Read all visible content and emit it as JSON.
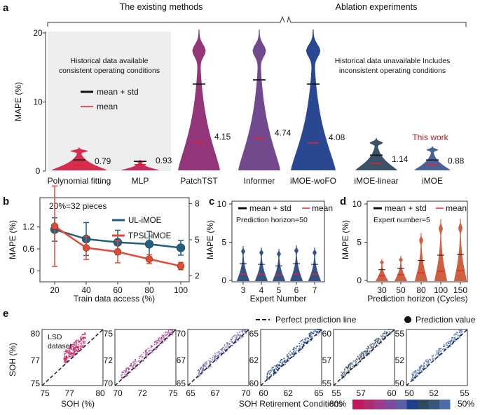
{
  "panel_letters": {
    "a": "a",
    "b": "b",
    "c": "c",
    "d": "d",
    "e": "e"
  },
  "colors": {
    "ul_imoe": "#1f5f82",
    "tpsl_imoe": "#e24a33",
    "poly": "#d62246",
    "mlp": "#c21e56",
    "patchtst": "#8c2a72",
    "informer": "#6b3f88",
    "woFO": "#1f3d8c",
    "linear": "#2f4a60",
    "imoe": "#3f5b94",
    "mean_line": "#e52222",
    "meanstd_line": "#111111",
    "scatter_gradient": [
      "#c2185b",
      "#9c3b87",
      "#6f5ba6",
      "#123f8c",
      "#2e4a5c",
      "#4c6ca8"
    ],
    "panel_d_violin": "#c8502a",
    "panel_c_violin": "#1f3f7a",
    "title_red": "#c0181e"
  },
  "chart_data": [
    {
      "id": "a",
      "type": "violin",
      "group_labels": [
        "The existing methods",
        "Ablation experiments"
      ],
      "ylabel": "MAPE (%)",
      "ylim": [
        0,
        20
      ],
      "yticks": [
        0,
        10,
        20
      ],
      "categories": [
        "Polynomial fitting",
        "MLP",
        "PatchTST",
        "Informer",
        "iMOE-woFO",
        "iMOE-linear",
        "iMOE"
      ],
      "means": [
        0.79,
        0.93,
        4.15,
        4.74,
        4.08,
        1.14,
        0.88
      ],
      "mean_plus_std": [
        1.6,
        1.4,
        12.6,
        13.2,
        12.6,
        2.3,
        1.6
      ],
      "max": [
        3.4,
        1.6,
        20.6,
        20.6,
        20.6,
        4.8,
        3.6
      ],
      "mean_labels": [
        "0.79",
        "0.93",
        "4.15",
        "4.74",
        "4.08",
        "1.14",
        "0.88"
      ],
      "legend": {
        "meanstd": "mean + std",
        "mean": "mean"
      },
      "left_note": "Historical data available consistent operating conditions",
      "right_note": "Historical data unavailable Includes inconsistent operating conditions",
      "highlight_label": "This work"
    },
    {
      "id": "b",
      "type": "line",
      "title": "20%=32 pieces",
      "xlabel": "Train data access (%)",
      "ylabel": "MAPE (%)",
      "x": [
        20,
        40,
        60,
        80,
        100
      ],
      "ylim_left": [
        -0.3,
        2.0
      ],
      "yticks_left": [
        0,
        0.6,
        1.2
      ],
      "ylim_right": [
        1.5,
        8.5
      ],
      "yticks_right": [
        2,
        5,
        8
      ],
      "series": [
        {
          "name": "UL-iMOE",
          "axis": "left",
          "values": [
            1.13,
            0.87,
            0.78,
            0.73,
            0.63
          ],
          "err": [
            0.32,
            0.45,
            0.33,
            0.35,
            0.2
          ]
        },
        {
          "name": "TPSL-iMOE",
          "axis": "left",
          "values": [
            1.22,
            0.63,
            0.52,
            0.32,
            0.13
          ],
          "err": [
            1.1,
            0.32,
            0.3,
            0.12,
            0.1
          ]
        }
      ]
    },
    {
      "id": "c",
      "type": "violin",
      "xlabel": "Expert Number",
      "ylabel": "MAPE (%)",
      "ylim": [
        0,
        10
      ],
      "yticks": [
        0,
        5,
        10
      ],
      "categories": [
        "3",
        "4",
        "5",
        "6",
        "7"
      ],
      "means": [
        0.82,
        0.8,
        0.7,
        0.82,
        0.8
      ],
      "mean_plus_std": [
        2.2,
        2.1,
        1.9,
        2.2,
        2.1
      ],
      "max": [
        4.5,
        4.3,
        4.1,
        4.6,
        4.3
      ],
      "note": "Prediction horizon=50",
      "legend": {
        "meanstd": "mean + std",
        "mean": "mean"
      }
    },
    {
      "id": "d",
      "type": "violin",
      "xlabel": "Prediction horizon (Cycles)",
      "ylabel": "MAPE (%)",
      "ylim": [
        0,
        10
      ],
      "yticks": [
        0,
        5,
        10
      ],
      "categories": [
        "30",
        "50",
        "80",
        "100",
        "150"
      ],
      "means": [
        0.6,
        0.75,
        1.0,
        1.2,
        1.3
      ],
      "mean_plus_std": [
        1.4,
        1.6,
        2.6,
        3.3,
        3.4
      ],
      "max": [
        2.8,
        3.2,
        6.2,
        8.0,
        8.1
      ],
      "note": "Expert number=5",
      "legend": {
        "meanstd": "mean + std",
        "mean": "mean"
      }
    },
    {
      "id": "e",
      "type": "scatter",
      "xlabel": "SOH (%)",
      "ylabel": "SOH (%)",
      "dataset_label": "LSD dataset",
      "legend": {
        "line": "Perfect prediction line",
        "point": "Prediction value"
      },
      "colorbar_label": "SOH Retirement Conditions",
      "colorbar_min": "80%",
      "colorbar_max": "50%",
      "subplots": [
        {
          "xlim": [
            75,
            80
          ],
          "ylim": [
            75,
            80
          ],
          "xticks": [
            "75",
            "77",
            "80"
          ],
          "yticks": [
            "75",
            "77",
            "80"
          ],
          "xr": [
            76.8,
            78.6
          ]
        },
        {
          "xlim": [
            70,
            75
          ],
          "ylim": [
            70,
            75
          ],
          "xticks": [
            "70",
            "72",
            "75"
          ],
          "yticks": [
            "70",
            "72",
            "75"
          ],
          "xr": [
            70.5,
            74.8
          ]
        },
        {
          "xlim": [
            65,
            70
          ],
          "ylim": [
            65,
            70
          ],
          "xticks": [
            "65",
            "67",
            "70"
          ],
          "yticks": [
            "65",
            "67",
            "70"
          ],
          "xr": [
            65.8,
            69.8
          ]
        },
        {
          "xlim": [
            60,
            65
          ],
          "ylim": [
            60,
            65
          ],
          "xticks": [
            "60",
            "62",
            "65"
          ],
          "yticks": [
            "60",
            "62",
            "65"
          ],
          "xr": [
            60.5,
            64.9
          ]
        },
        {
          "xlim": [
            55,
            60
          ],
          "ylim": [
            55,
            60
          ],
          "xticks": [
            "55",
            "57",
            "60"
          ],
          "yticks": [
            "55",
            "57",
            "60"
          ],
          "xr": [
            55.6,
            59.8
          ]
        },
        {
          "xlim": [
            50,
            55
          ],
          "ylim": [
            50,
            55
          ],
          "xticks": [
            "50",
            "52",
            "55"
          ],
          "yticks": [
            "50",
            "52",
            "55"
          ],
          "xr": [
            50.4,
            54.6
          ]
        }
      ]
    }
  ]
}
